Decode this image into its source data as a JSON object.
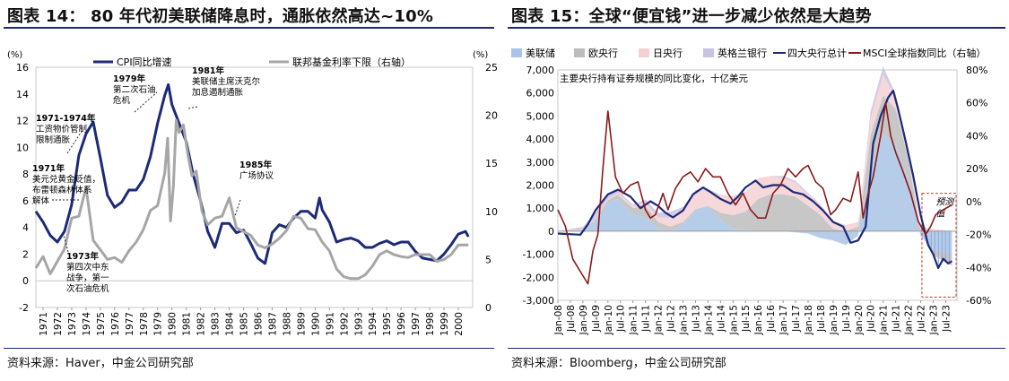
{
  "left": {
    "title": "图表 14：  80 年代初美联储降息时，通胀依然高达~10%",
    "source": "资料来源：Haver，中金公司研究部",
    "chart_data": {
      "type": "line",
      "left_unit": "(%)",
      "right_unit": "(%)",
      "ylim_left": [
        -2,
        16
      ],
      "yticks_left": [
        "-2",
        "0",
        "2",
        "4",
        "6",
        "8",
        "10",
        "12",
        "14",
        "16"
      ],
      "ylim_right": [
        0,
        25
      ],
      "yticks_right": [
        "0",
        "5",
        "10",
        "15",
        "20",
        "25"
      ],
      "xlim": [
        1971,
        2001.5
      ],
      "xticks": [
        "1971",
        "1972",
        "1973",
        "1974",
        "1975",
        "1976",
        "1977",
        "1978",
        "1979",
        "1980",
        "1981",
        "1982",
        "1983",
        "1984",
        "1985",
        "1986",
        "1987",
        "1988",
        "1989",
        "1990",
        "1991",
        "1992",
        "1993",
        "1994",
        "1995",
        "1996",
        "1997",
        "1998",
        "1999",
        "2000"
      ],
      "series": [
        {
          "name": "CPI同比增速",
          "axis": "left",
          "color": "#1c2a78",
          "x": [
            1971.0,
            1971.5,
            1972.0,
            1972.5,
            1973.0,
            1973.5,
            1974.0,
            1974.5,
            1975.0,
            1975.5,
            1976.0,
            1976.5,
            1977.0,
            1977.5,
            1978.0,
            1978.5,
            1979.0,
            1979.5,
            1980.0,
            1980.25,
            1980.5,
            1981.0,
            1981.5,
            1982.0,
            1982.5,
            1983.0,
            1983.5,
            1984.0,
            1984.5,
            1985.0,
            1985.5,
            1986.0,
            1986.5,
            1987.0,
            1987.5,
            1988.0,
            1988.5,
            1989.0,
            1989.5,
            1990.0,
            1990.5,
            1990.8,
            1991.0,
            1991.5,
            1992.0,
            1992.5,
            1993.0,
            1993.5,
            1994.0,
            1994.5,
            1995.0,
            1995.5,
            1996.0,
            1996.5,
            1997.0,
            1997.5,
            1998.0,
            1998.5,
            1999.0,
            1999.5,
            2000.0,
            2000.5,
            2001.0,
            2001.2
          ],
          "y": [
            5.2,
            4.4,
            3.4,
            2.9,
            3.7,
            5.7,
            9.4,
            11.0,
            11.9,
            9.2,
            6.4,
            5.5,
            5.9,
            6.8,
            6.8,
            7.6,
            9.3,
            11.8,
            13.9,
            14.7,
            13.2,
            11.8,
            10.4,
            7.9,
            6.0,
            3.7,
            2.5,
            4.3,
            4.3,
            3.6,
            3.8,
            2.8,
            1.7,
            1.3,
            3.6,
            4.2,
            4.0,
            4.7,
            5.2,
            5.2,
            4.7,
            6.2,
            5.3,
            4.4,
            2.9,
            3.1,
            3.2,
            3.0,
            2.5,
            2.5,
            2.8,
            3.0,
            2.7,
            2.9,
            2.9,
            2.2,
            1.7,
            1.6,
            1.5,
            2.0,
            2.7,
            3.5,
            3.7,
            3.3
          ]
        },
        {
          "name": "联邦基金利率下限（右轴）",
          "axis": "right",
          "color": "#a6a6a6",
          "x": [
            1971.0,
            1971.5,
            1972.0,
            1972.5,
            1973.0,
            1973.5,
            1974.0,
            1974.5,
            1975.0,
            1975.5,
            1976.0,
            1976.5,
            1977.0,
            1977.5,
            1978.0,
            1978.5,
            1979.0,
            1979.5,
            1980.0,
            1980.2,
            1980.4,
            1980.6,
            1980.8,
            1981.0,
            1981.3,
            1981.6,
            1981.9,
            1982.2,
            1982.6,
            1983.0,
            1983.5,
            1984.0,
            1984.5,
            1985.0,
            1985.5,
            1986.0,
            1986.5,
            1987.0,
            1987.5,
            1988.0,
            1988.5,
            1989.0,
            1989.5,
            1990.0,
            1990.5,
            1991.0,
            1991.5,
            1992.0,
            1992.5,
            1993.0,
            1993.5,
            1994.0,
            1994.5,
            1995.0,
            1995.5,
            1996.0,
            1996.5,
            1997.0,
            1997.5,
            1998.0,
            1998.5,
            1999.0,
            1999.5,
            2000.0,
            2000.5,
            2001.0,
            2001.2
          ],
          "y": [
            4.1,
            5.3,
            3.5,
            4.8,
            6.1,
            9.3,
            9.5,
            12.5,
            7.0,
            6.0,
            5.0,
            5.2,
            4.7,
            5.9,
            6.8,
            8.1,
            10.1,
            10.6,
            14.0,
            17.6,
            9.0,
            12.6,
            19.5,
            18.2,
            19.0,
            16.0,
            13.7,
            14.2,
            10.0,
            8.6,
            9.3,
            9.5,
            11.4,
            8.3,
            7.9,
            7.5,
            6.5,
            6.2,
            6.6,
            7.2,
            8.0,
            9.5,
            9.3,
            8.2,
            8.1,
            6.8,
            5.9,
            4.0,
            3.2,
            3.0,
            3.0,
            3.4,
            4.3,
            5.5,
            5.9,
            5.5,
            5.3,
            5.2,
            5.5,
            5.5,
            5.5,
            4.8,
            5.0,
            5.5,
            6.5,
            6.5,
            6.5
          ]
        }
      ],
      "annotations": [
        {
          "lines": [
            "1971-1974年",
            "工资物价管制",
            "限制通胀"
          ]
        },
        {
          "lines": [
            "1971年",
            "美元兑黄金贬值，",
            "布雷顿森林体系",
            "解体"
          ]
        },
        {
          "lines": [
            "1973年",
            "第四次中东",
            "战争，第一",
            "次石油危机"
          ]
        },
        {
          "lines": [
            "1979年",
            "第二次石油",
            "危机"
          ]
        },
        {
          "lines": [
            "1981年",
            "美联储主席沃克尔",
            "加息遏制通胀"
          ]
        },
        {
          "lines": [
            "1985年",
            "广场协议"
          ]
        }
      ]
    }
  },
  "right": {
    "title": "图表 15：全球“便宜钱”进一步减少依然是大趋势",
    "source": "资料来源：Bloomberg，中金公司研究部",
    "chart_data": {
      "type": "area",
      "subtitle": "主要央行持有证券规模的同比变化，十亿美元",
      "ylim_left": [
        -3000,
        7000
      ],
      "yticks_left": [
        "-3,000",
        "-2,000",
        "-1,000",
        "0",
        "1,000",
        "2,000",
        "3,000",
        "4,000",
        "5,000",
        "6,000",
        "7,000"
      ],
      "ylim_right": [
        -60,
        80
      ],
      "yticks_right": [
        "-60%",
        "-40%",
        "-20%",
        "0%",
        "20%",
        "40%",
        "60%",
        "80%"
      ],
      "xticks": [
        "Jan-08",
        "Jul-08",
        "Jan-09",
        "Jul-09",
        "Jan-10",
        "Jul-10",
        "Jan-11",
        "Jul-11",
        "Jan-12",
        "Jul-12",
        "Jan-13",
        "Jul-13",
        "Jan-14",
        "Jul-14",
        "Jan-15",
        "Jul-15",
        "Jan-16",
        "Jul-16",
        "Jan-17",
        "Jul-17",
        "Jan-18",
        "Jul-18",
        "Jan-19",
        "Jul-19",
        "Jan-20",
        "Jul-20",
        "Jan-21",
        "Jul-21",
        "Jan-22",
        "Jul-22",
        "Jan-23",
        "Jul-23"
      ],
      "forecast_label": "预测值",
      "legend": [
        {
          "name": "美联储",
          "color": "#a9c4e6"
        },
        {
          "name": "欧央行",
          "color": "#bdbdbd"
        },
        {
          "name": "日央行",
          "color": "#f4d0d3"
        },
        {
          "name": "英格兰银行",
          "color": "#c9c3e3"
        },
        {
          "name": "四大央行总计",
          "color": "#1c2a78"
        },
        {
          "name": "MSCI全球指数同比（右轴）",
          "color": "#8b1a1a"
        }
      ],
      "series": [
        {
          "name": "美联储",
          "axis": "left",
          "x": [
            2008.0,
            2009.0,
            2009.5,
            2010.0,
            2010.4,
            2011.0,
            2011.5,
            2012.0,
            2012.5,
            2013.0,
            2013.5,
            2014.0,
            2014.5,
            2015.0,
            2016.0,
            2017.0,
            2018.0,
            2018.5,
            2019.0,
            2019.5,
            2020.0,
            2020.5,
            2021.0,
            2021.5,
            2022.0,
            2022.5,
            2023.0,
            2023.75
          ],
          "y": [
            0,
            0,
            400,
            1200,
            1400,
            700,
            600,
            100,
            0,
            300,
            900,
            1100,
            500,
            100,
            0,
            0,
            -100,
            -300,
            -400,
            -600,
            -200,
            2800,
            4200,
            3800,
            2200,
            -200,
            -800,
            -1000
          ]
        },
        {
          "name": "欧央行",
          "axis": "left",
          "x": [
            2008.0,
            2009.5,
            2010.5,
            2011.0,
            2011.5,
            2012.0,
            2013.0,
            2014.0,
            2015.0,
            2015.5,
            2016.0,
            2016.5,
            2017.0,
            2017.5,
            2018.0,
            2018.5,
            2019.0,
            2019.5,
            2020.0,
            2020.5,
            2021.0,
            2021.5,
            2022.0,
            2022.5,
            2023.0,
            2023.75
          ],
          "y": [
            0,
            100,
            200,
            300,
            500,
            300,
            100,
            0,
            600,
            800,
            1400,
            1600,
            1600,
            1500,
            1100,
            700,
            100,
            0,
            200,
            1400,
            1700,
            1500,
            1000,
            100,
            -200,
            -400
          ]
        },
        {
          "name": "日央行",
          "axis": "left",
          "x": [
            2008.0,
            2010.0,
            2011.0,
            2012.0,
            2013.0,
            2013.5,
            2014.0,
            2015.0,
            2016.0,
            2017.0,
            2018.0,
            2019.0,
            2020.0,
            2020.5,
            2021.0,
            2021.5,
            2022.0,
            2022.5,
            2023.0,
            2023.75
          ],
          "y": [
            0,
            50,
            100,
            200,
            600,
            800,
            700,
            800,
            900,
            700,
            500,
            300,
            200,
            700,
            900,
            500,
            300,
            200,
            100,
            0
          ]
        },
        {
          "name": "英格兰银行",
          "axis": "left",
          "x": [
            2008.0,
            2009.0,
            2009.5,
            2010.0,
            2011.0,
            2012.0,
            2012.5,
            2013.0,
            2016.5,
            2017.0,
            2020.0,
            2020.5,
            2021.0,
            2021.5,
            2022.0,
            2023.0,
            2023.75
          ],
          "y": [
            0,
            100,
            250,
            150,
            50,
            200,
            250,
            50,
            0,
            100,
            0,
            300,
            350,
            150,
            50,
            -50,
            -100
          ]
        },
        {
          "name": "四大央行总计",
          "axis": "left",
          "x": [
            2008.0,
            2008.9,
            2009.2,
            2009.5,
            2010.0,
            2010.4,
            2010.9,
            2011.3,
            2011.7,
            2012.0,
            2012.3,
            2012.6,
            2013.0,
            2013.4,
            2013.8,
            2014.1,
            2014.5,
            2014.9,
            2015.2,
            2015.5,
            2015.9,
            2016.2,
            2016.6,
            2017.0,
            2017.4,
            2017.8,
            2018.2,
            2018.6,
            2019.0,
            2019.4,
            2019.7,
            2020.0,
            2020.3,
            2020.6,
            2020.9,
            2021.2,
            2021.4,
            2021.6,
            2021.9,
            2022.2,
            2022.5,
            2022.8,
            2023.0,
            2023.2,
            2023.4,
            2023.6,
            2023.75
          ],
          "y": [
            -100,
            -150,
            300,
            900,
            1600,
            1800,
            1500,
            1000,
            1300,
            1100,
            800,
            600,
            900,
            1600,
            1900,
            1700,
            1400,
            1200,
            1500,
            1900,
            2200,
            1900,
            2000,
            2000,
            1700,
            1600,
            1300,
            900,
            400,
            200,
            -500,
            -400,
            200,
            3800,
            5000,
            5800,
            6100,
            5300,
            3900,
            2400,
            700,
            -600,
            -1000,
            -1600,
            -1200,
            -1400,
            -1300
          ]
        },
        {
          "name": "MSCI全球指数同比（右轴）",
          "axis": "right",
          "x": [
            2008.0,
            2008.3,
            2008.6,
            2008.8,
            2009.0,
            2009.2,
            2009.4,
            2009.6,
            2009.8,
            2010.0,
            2010.3,
            2010.6,
            2010.9,
            2011.2,
            2011.5,
            2011.7,
            2011.9,
            2012.2,
            2012.4,
            2012.7,
            2013.0,
            2013.3,
            2013.6,
            2013.9,
            2014.2,
            2014.5,
            2014.8,
            2015.1,
            2015.4,
            2015.7,
            2016.0,
            2016.3,
            2016.6,
            2016.9,
            2017.2,
            2017.5,
            2017.8,
            2018.0,
            2018.3,
            2018.6,
            2018.9,
            2019.1,
            2019.4,
            2019.7,
            2020.0,
            2020.2,
            2020.4,
            2020.6,
            2020.9,
            2021.1,
            2021.3,
            2021.5,
            2021.8,
            2022.1,
            2022.4,
            2022.7,
            2022.9,
            2023.1,
            2023.4,
            2023.75
          ],
          "y": [
            -5,
            -15,
            -35,
            -40,
            -45,
            -50,
            -30,
            -20,
            20,
            55,
            15,
            5,
            10,
            12,
            -5,
            -10,
            -8,
            5,
            -5,
            8,
            15,
            18,
            12,
            20,
            15,
            15,
            5,
            -2,
            5,
            -5,
            -10,
            -10,
            5,
            10,
            20,
            15,
            20,
            22,
            12,
            8,
            -8,
            -5,
            2,
            0,
            18,
            -10,
            5,
            15,
            40,
            60,
            40,
            30,
            18,
            5,
            -12,
            -20,
            -15,
            -8,
            -5,
            -2
          ]
        }
      ]
    }
  }
}
